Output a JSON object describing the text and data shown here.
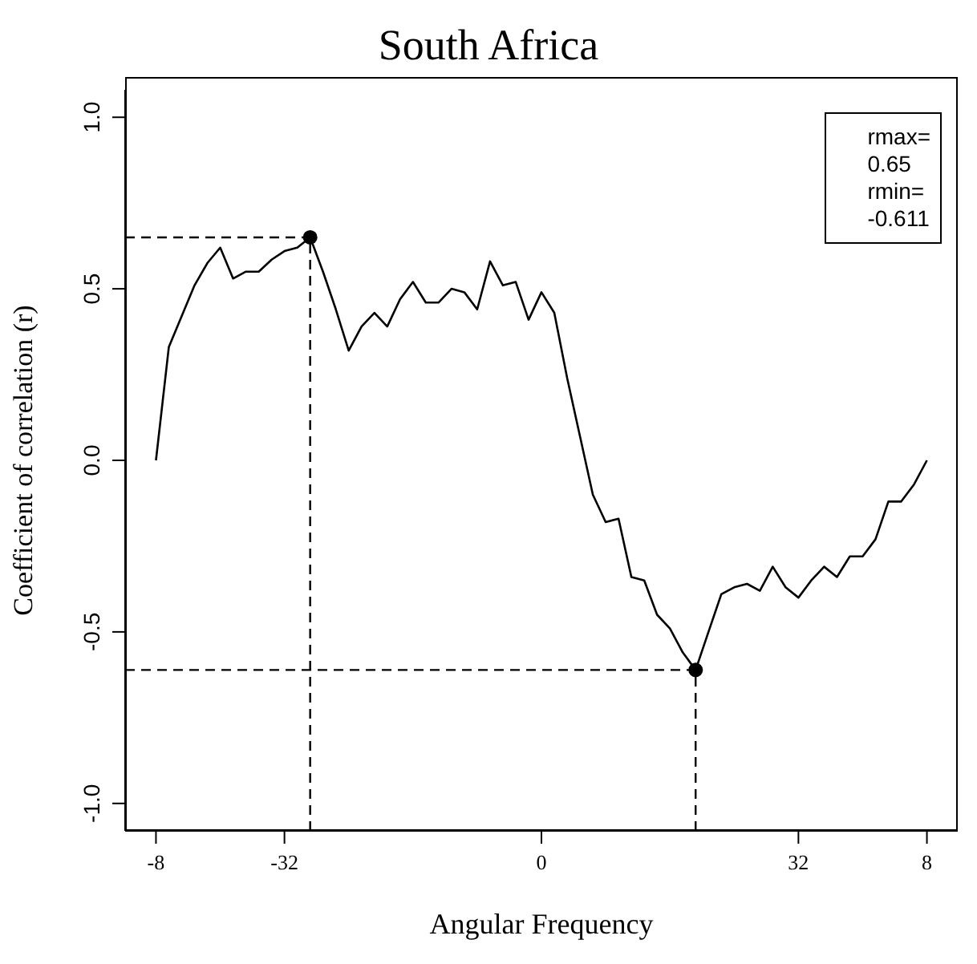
{
  "chart_data": {
    "type": "line",
    "title": "South Africa",
    "xlabel": "Angular Frequency",
    "ylabel": "Coefficient of correlation (r)",
    "categories": [
      "-8",
      null,
      null,
      null,
      null,
      null,
      null,
      null,
      null,
      null,
      "-32",
      null,
      null,
      null,
      null,
      null,
      null,
      null,
      null,
      null,
      null,
      null,
      null,
      null,
      null,
      null,
      null,
      null,
      null,
      null,
      "0",
      null,
      null,
      null,
      null,
      null,
      null,
      null,
      null,
      null,
      null,
      null,
      null,
      null,
      null,
      null,
      null,
      null,
      null,
      null,
      "32",
      null,
      null,
      null,
      null,
      null,
      null,
      null,
      null,
      null,
      "8"
    ],
    "ylim": [
      -1.08,
      1.08
    ],
    "yticks": [
      {
        "value": -1.0,
        "label": "-1.0"
      },
      -0.5,
      {
        "value": 0,
        "label": "0.0"
      },
      0.5,
      {
        "value": 1.0,
        "label": "1.0"
      }
    ],
    "marker": "none",
    "line_style": "solid",
    "series": [
      {
        "color": "#000000",
        "values": [
          0.0,
          0.33,
          0.42,
          0.51,
          0.575,
          0.62,
          0.53,
          0.55,
          0.55,
          0.585,
          0.61,
          0.62,
          0.65,
          0.55,
          0.44,
          0.32,
          0.39,
          0.43,
          0.39,
          0.47,
          0.52,
          0.46,
          0.46,
          0.5,
          0.49,
          0.44,
          0.58,
          0.51,
          0.52,
          0.41,
          0.49,
          0.43,
          0.24,
          0.07,
          -0.1,
          -0.18,
          -0.17,
          -0.34,
          -0.35,
          -0.45,
          -0.49,
          -0.56,
          -0.611,
          -0.5,
          -0.39,
          -0.37,
          -0.36,
          -0.38,
          -0.31,
          -0.37,
          -0.4,
          -0.35,
          -0.31,
          -0.34,
          -0.28,
          -0.28,
          -0.23,
          -0.12,
          -0.12,
          -0.07,
          0.0
        ]
      },
      {
        "type": "scatter",
        "color": "#000000",
        "marker": "circle",
        "values": [
          null,
          null,
          null,
          null,
          null,
          null,
          null,
          null,
          null,
          null,
          null,
          null,
          0.65,
          null,
          null,
          null,
          null,
          null,
          null,
          null,
          null,
          null,
          null,
          null,
          null,
          null,
          null,
          null,
          null,
          null,
          null,
          null,
          null,
          null,
          null,
          null,
          null,
          null,
          null,
          null,
          null,
          null,
          -0.611,
          null,
          null,
          null,
          null,
          null,
          null,
          null,
          null,
          null,
          null,
          null,
          null,
          null,
          null,
          null,
          null,
          null,
          null
        ]
      }
    ],
    "ref_lines": [
      {
        "axis": "y",
        "value": 0.65,
        "line_style": "dashed",
        "color": "#000000"
      },
      {
        "axis": "y",
        "value": -0.611,
        "line_style": "dashed",
        "color": "#000000"
      }
    ],
    "annotations": [
      "rmax=\n0.65\nrmin=\n-0.611"
    ]
  }
}
